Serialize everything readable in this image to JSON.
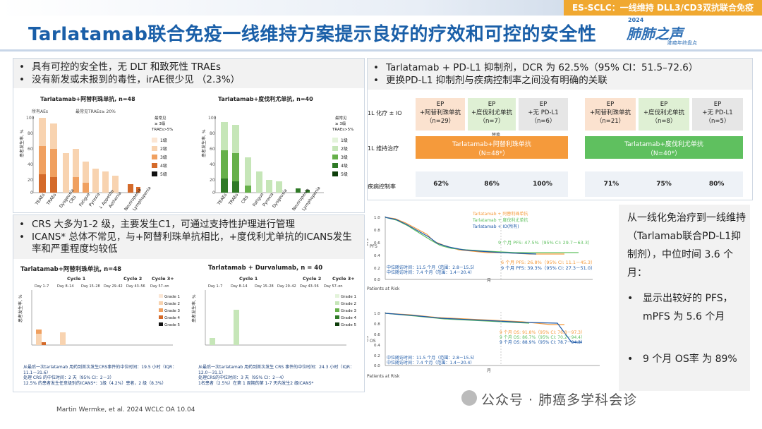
{
  "header": {
    "tag": "ES-SCLC：一线维持 DLL3/CD3双抗联合免疫",
    "title": "Tarlatamab联合免疫一线维持方案提示良好的疗效和可控的安全性",
    "logo": {
      "year": "2024",
      "name": "肺肺之声",
      "sub": "肺癌年终盘点"
    }
  },
  "panel_safety": {
    "bullets": [
      "具有可控的安全性，无 DLT 和致死性 TRAEs",
      "没有新发或未报到的毒性，irAE很少见 （2.3%）"
    ],
    "chart_left": {
      "title": "Tarlatamab+阿替利珠单抗, n=48",
      "label_all": "所有AEs",
      "label_common": "最常见TRAEs≥ 20%",
      "label_most": "最常见 ≥ 3级 TRAEs>5%",
      "ylabel": "患者发生率, %",
      "legend": [
        "1级",
        "2级",
        "3级",
        "4级",
        "5级"
      ],
      "categories": [
        "TEAEs",
        "TRAEs",
        "Dysgeusia",
        "CRS",
        "Fatigue",
        "Pyrexia",
        "↓ Appetite",
        "Asthenia",
        "Neutropenia",
        "Lymphopenia"
      ]
    },
    "chart_right": {
      "title": "Tarlatamab+度伐利尤单抗, n=40",
      "label_most": "最常见 ≥ 3级 TRAEs>5%",
      "ylabel": "患者发生率, %",
      "legend": [
        "1级",
        "2级",
        "3级",
        "4级",
        "5级"
      ],
      "categories": [
        "TEAEs",
        "TRAEs",
        "CRS",
        "Fatigue",
        "Pyrexia",
        "Dysgeusia",
        "Neutropenia",
        "Lymphopenia"
      ]
    }
  },
  "panel_crs": {
    "bullets": [
      "CRS 大多为1-2 级，主要发生C1，可通过支持性护理进行管理",
      "ICANS* 总体不常见，与+阿替利珠单抗相比，+度伐利尤单抗的ICANS发生率和严重程度均较低"
    ],
    "chart_left_title": "Tarlatamab+阿替利珠单抗, n=48",
    "chart_right_title": "Tarlatamab + Durvalumab, n = 40",
    "cycles": [
      "Cycle 1",
      "Cycle 2",
      "Cycle 3+"
    ],
    "days": [
      "Day 1–7",
      "Day 8–14",
      "Day 15–28",
      "Day 29–42",
      "Day 43–56",
      "Day 57–on"
    ],
    "ylabel": "患者发生率, %",
    "legend": [
      "Grade 1",
      "Grade 2",
      "Grade 3",
      "Grade 4",
      "Grade 5"
    ],
    "notes_left": [
      "从最后一次tarlatamab 用药到首次发生CRS事件的中位时间：19.5 小时（IQR：11.1－31.6）",
      "处理 CRS 的中位时间：2 天（95% CI：2－3）",
      "12.5% 的患者发生任意级别的ICANS*：1级（4.2%）患者，2 级（8.3%）"
    ],
    "notes_right": [
      "从最后一次tarlatamab 用药到首次发生 CRS 事件的中位时间：24.3 小时（IQR：12.0－31.1）",
      "处理CRS的中位时间：3 天（95% CI：2－4）",
      "1名患者（2.5%）在第 1 周期的第 1-7 天内发生2 级ICANS*"
    ]
  },
  "panel_efficacy": {
    "bullets": [
      "Tarlatamab + PD-L1 抑制剂，DCR 为 62.5%（95% CI：51.5–72.6）",
      "更换PD-L1 抑制剂与疾病控制率之间没有明确的关联"
    ],
    "row_labels": [
      "1L 化疗 ± IO",
      "1L 维持治疗",
      "疾病控制率"
    ],
    "groups_left": [
      {
        "ep": "EP",
        "drug": "+阿替利珠单抗",
        "n": "（n=29）"
      },
      {
        "ep": "EP",
        "drug": "+度伐利尤单抗",
        "n": "（n=7）"
      },
      {
        "ep": "EP",
        "drug": "+无 PD-L1",
        "n": "（n=6）"
      }
    ],
    "groups_right": [
      {
        "ep": "EP",
        "drug": "+阿替利珠单抗",
        "n": "（n=21）"
      },
      {
        "ep": "EP",
        "drug": "+度伐利尤单抗",
        "n": "（n=8）"
      },
      {
        "ep": "EP",
        "drug": "+无 PD-L1",
        "n": "（n=5）"
      }
    ],
    "switch_note": "替换",
    "maint_left": "Tarlatamab+阿替利珠单抗",
    "maint_left_n": "（N=48*）",
    "maint_right": "Tarlatamab+度伐利尤单抗",
    "maint_right_n": "（N=40*）",
    "dcr_left": [
      "62%",
      "86%",
      "100%"
    ],
    "dcr_right": [
      "71%",
      "75%",
      "80%"
    ]
  },
  "km": {
    "pfs_ylabel": "PFS",
    "os_ylabel": "OS",
    "pfs_9m": "9 个月 PFS: 47.5%（95% CI: 29.7－63.3）",
    "pfs_6m": "6 个月 PFS: 26.8%（95% CI: 11.1－45.3）",
    "pfs_9m_b": "9 个月 PFS: 39.3%（95% CI: 27.3－51.0）",
    "os_lines": [
      "9 个月 OS: 91.8%（95% CI: 76.8－97.3）",
      "9 个月 OS: 86.7%（95% CI: 70.2－94.4）",
      "9 个月 OS: 88.9%（95% CI: 78.7－94.3）"
    ],
    "legend": [
      "Tarlatamab + 阿替利珠单抗",
      "Tarlatamab + 度伐利尤单抗",
      "Tarlatamab + IO(所有)"
    ],
    "at_risk": "Patients at Risk",
    "xticks_pfs": [
      "0",
      "3",
      "6",
      "9",
      "12",
      "15",
      "18"
    ],
    "xticks_os": [
      "0",
      "3",
      "6",
      "9",
      "12",
      "15",
      "18",
      "21"
    ],
    "xlabel": "月",
    "mfu_pfs": [
      "中位随访时间：11.5 个月（范围：2.8－15.5）",
      "中位随访时间：7.4 个月（范围：1.4－20.4）"
    ],
    "mfu_os": [
      "中位随访时间：11.5 个月（范围：2.8－15.5）",
      "中位随访时间：7.4 个月（范围：1.4－20.4）"
    ]
  },
  "sidebox": {
    "intro": "从一线化免治疗到一线维持（Tarlamab联合PD-L1抑制剂），中位时间 3.6 个月：",
    "bullets": [
      "显示出较好的 PFS，mPFS 为 5.6 个月",
      "9 个月 OS率 为 89%"
    ]
  },
  "footer": {
    "citation": "Martin Wermke, et al. 2024 WCLC OA 10.04",
    "watermark": "公众号 · 肺癌多学科会诊"
  },
  "colors": {
    "title_blue": "#1a5fa8",
    "orange": "#f59a3b",
    "green": "#5fc05f",
    "tag_orange": "#f0a830"
  }
}
